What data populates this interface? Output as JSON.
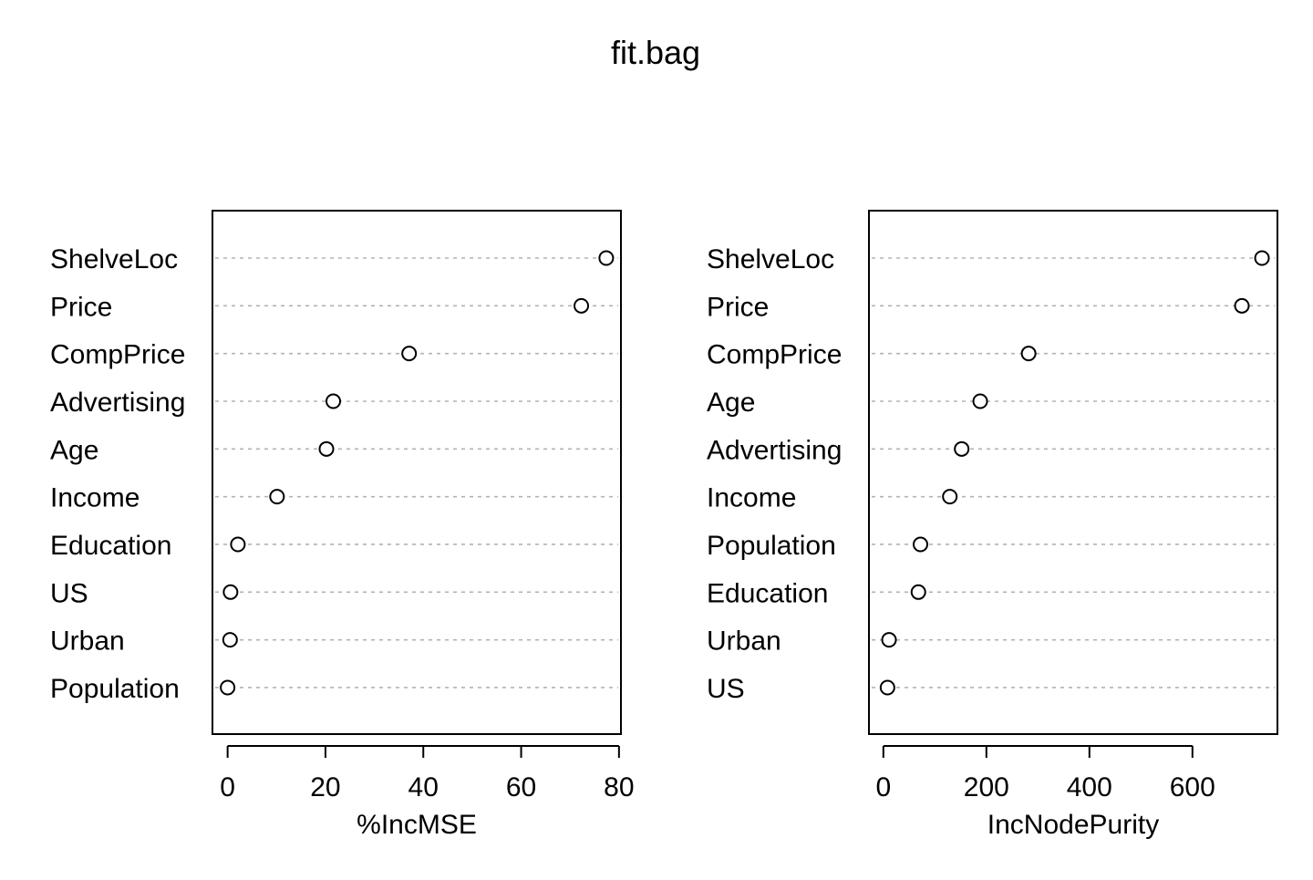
{
  "chart_data": {
    "title": "fit.bag",
    "panels": [
      {
        "type": "scatter",
        "xlabel": "%IncMSE",
        "xlim": [
          -3.1,
          80.4
        ],
        "xticks": [
          0,
          20,
          40,
          60,
          80
        ],
        "grid": "horizontal dotted lines",
        "categories": [
          "ShelveLoc",
          "Price",
          "CompPrice",
          "Advertising",
          "Age",
          "Income",
          "Education",
          "US",
          "Urban",
          "Population"
        ],
        "values": [
          77.4,
          72.3,
          37.1,
          21.6,
          20.2,
          10.1,
          2.1,
          0.6,
          0.5,
          0.0
        ]
      },
      {
        "type": "scatter",
        "xlabel": "IncNodePurity",
        "xlim": [
          -28,
          765
        ],
        "xticks": [
          0,
          200,
          400,
          600
        ],
        "grid": "horizontal dotted lines",
        "categories": [
          "ShelveLoc",
          "Price",
          "CompPrice",
          "Age",
          "Advertising",
          "Income",
          "Population",
          "Education",
          "Urban",
          "US"
        ],
        "values": [
          735,
          696,
          282,
          188,
          152,
          129,
          72,
          68,
          11,
          8
        ]
      }
    ]
  }
}
